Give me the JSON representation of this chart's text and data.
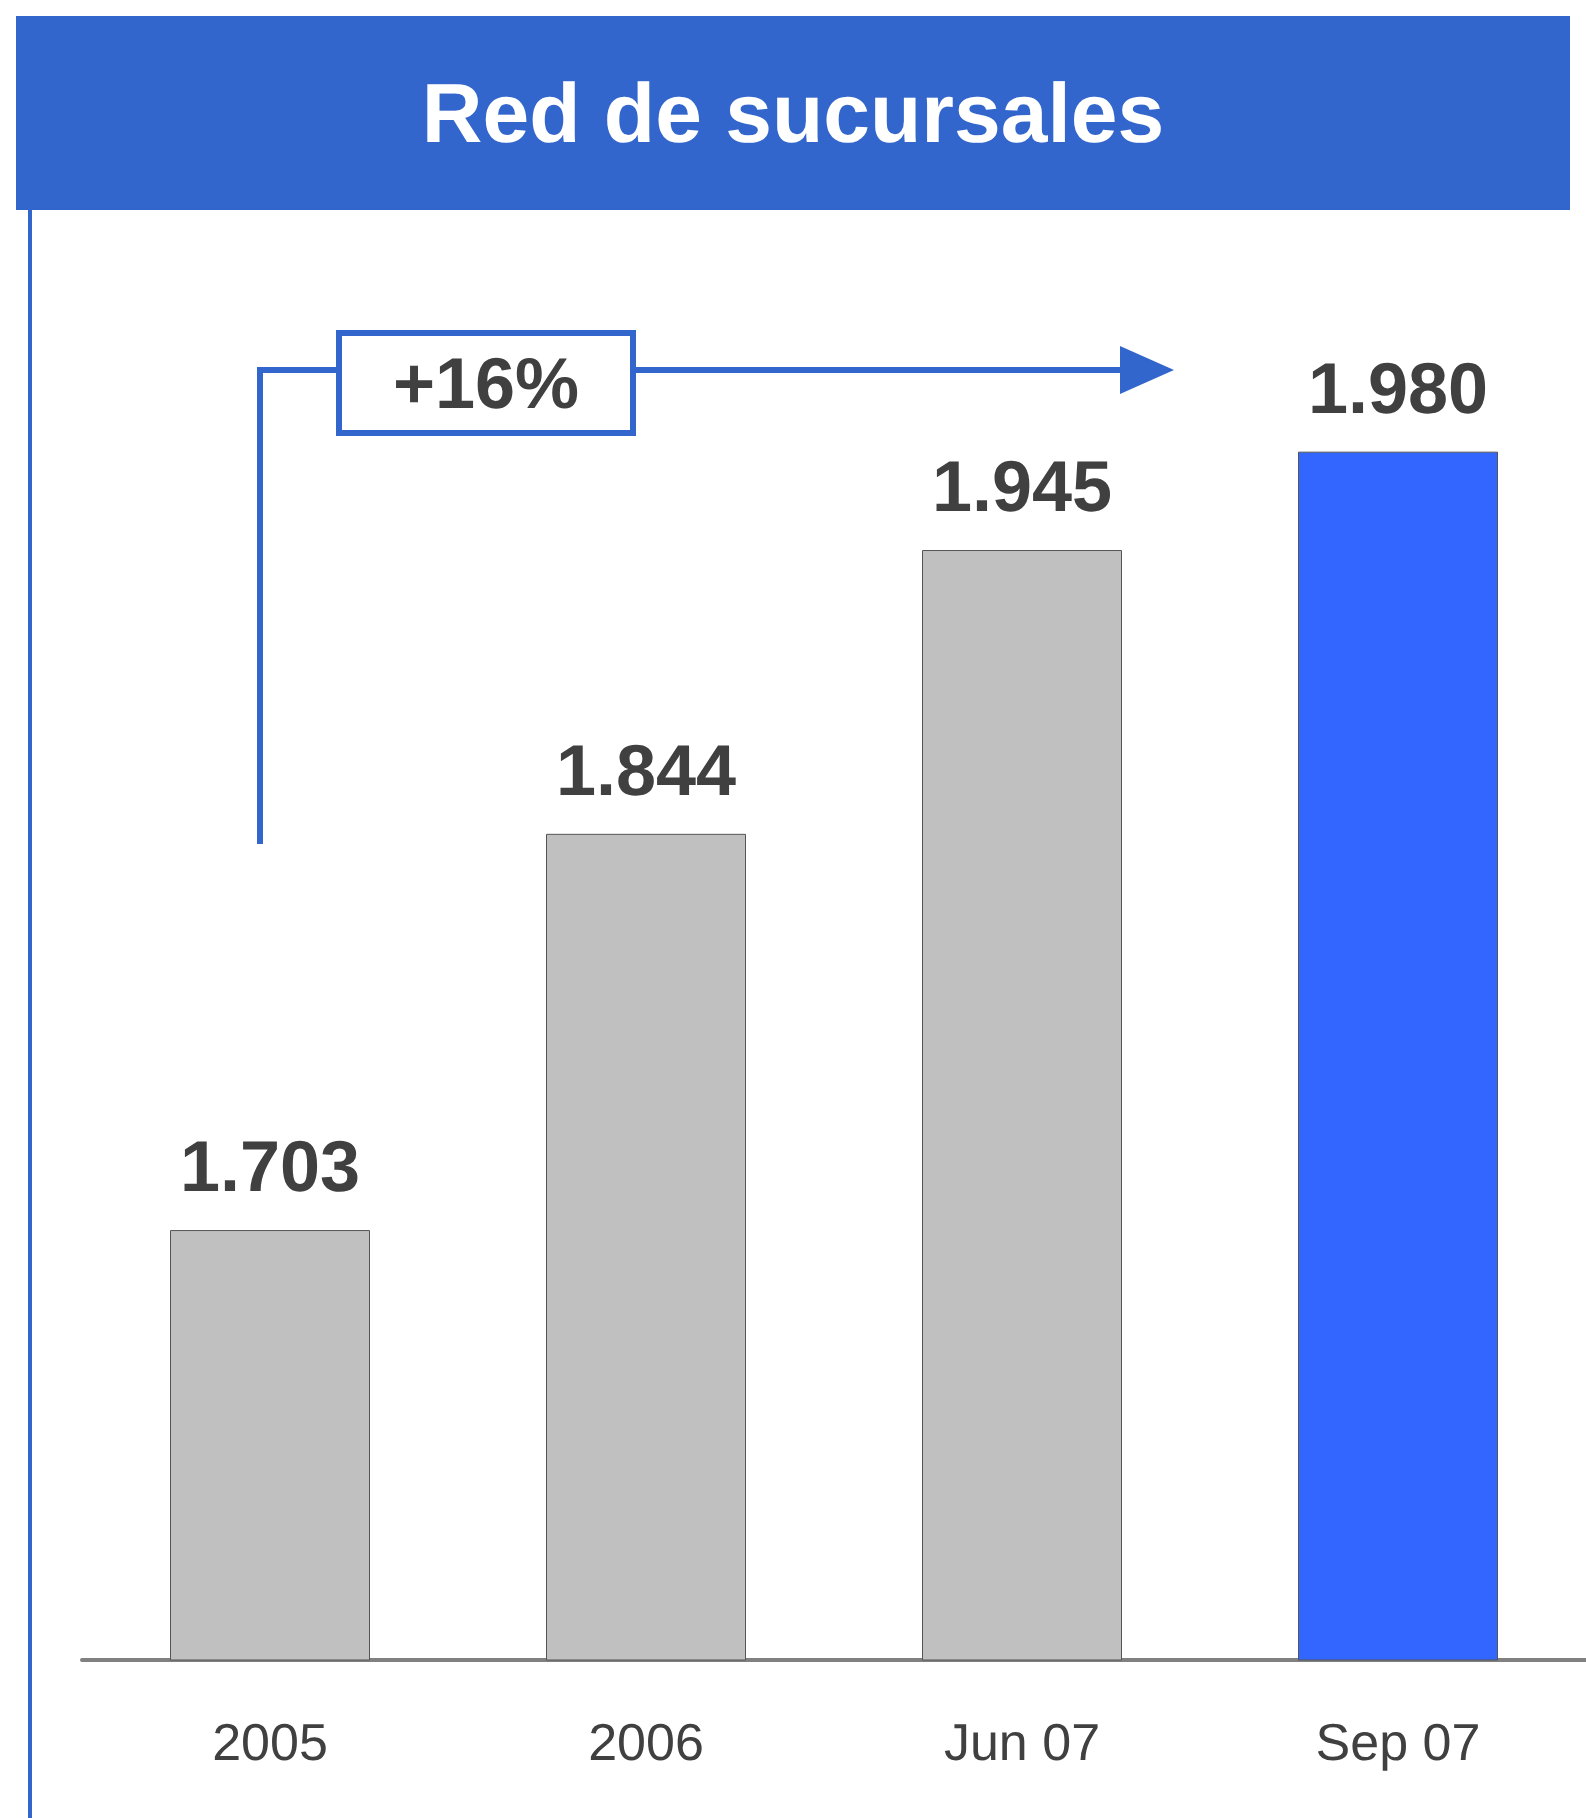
{
  "chart_data": {
    "type": "bar",
    "title": "Red de sucursales",
    "categories": [
      "2005",
      "2006",
      "Jun 07",
      "Sep 07"
    ],
    "values": [
      1703,
      1844,
      1945,
      1980
    ],
    "value_labels": [
      "1.703",
      "1.844",
      "1.945",
      "1.980"
    ],
    "colors": [
      "#c0c0c0",
      "#c0c0c0",
      "#c0c0c0",
      "#3366ff"
    ],
    "ylim": [
      1550,
      2066
    ],
    "tick_labels": "x",
    "grid": false,
    "annotations": [
      "+16%"
    ]
  }
}
